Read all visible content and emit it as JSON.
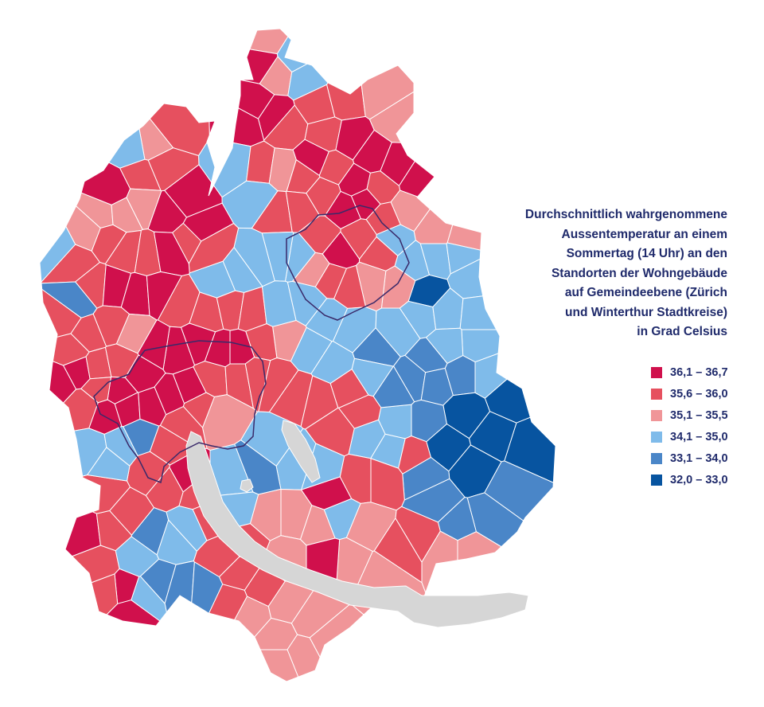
{
  "map": {
    "title_lines": [
      "Durchschnittlich wahrgenommene",
      "Aussentemperatur an einem",
      "Sommertag (14 Uhr) an den",
      "Standorten der Wohngebäude",
      "auf Gemeindeebene (Zürich",
      "und Winterthur Stadtkreise)",
      "in Grad Celsius"
    ],
    "legend": [
      {
        "label": "36,1 – 36,7",
        "color": "#d0104c"
      },
      {
        "label": "35,6 – 36,0",
        "color": "#e6505f"
      },
      {
        "label": "35,1 – 35,5",
        "color": "#f09598"
      },
      {
        "label": "34,1 – 35,0",
        "color": "#7fbbea"
      },
      {
        "label": "33,1 – 34,0",
        "color": "#4a86c8"
      },
      {
        "label": "32,0 – 33,0",
        "color": "#0754a0"
      }
    ],
    "lake_color": "#d6d6d6",
    "border_color": "#ffffff",
    "city_border_color": "#3a2a6a"
  }
}
